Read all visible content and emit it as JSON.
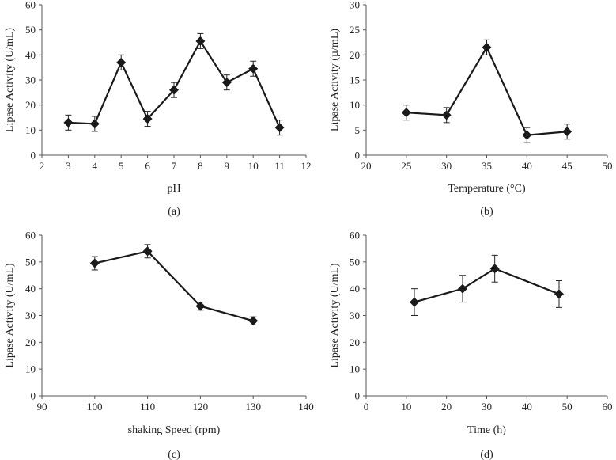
{
  "chart_data": [
    {
      "type": "line",
      "panel_label": "(a)",
      "xlabel": "pH",
      "ylabel": "Lipase Activity (U/mL)",
      "xlim": [
        2,
        12
      ],
      "ylim": [
        0,
        60
      ],
      "xticks": [
        "2",
        "3",
        "4",
        "5",
        "6",
        "7",
        "8",
        "9",
        "10",
        "11",
        "12"
      ],
      "yticks": [
        "0",
        "10",
        "20",
        "30",
        "40",
        "50",
        "60"
      ],
      "x": [
        3,
        4,
        5,
        6,
        7,
        8,
        9,
        10,
        11
      ],
      "values": [
        13,
        12.5,
        37,
        14.5,
        26,
        45.5,
        29,
        34.5,
        11
      ],
      "errors": [
        3,
        3,
        3,
        3,
        3,
        3,
        3,
        3,
        3
      ]
    },
    {
      "type": "line",
      "panel_label": "(b)",
      "xlabel": "Temperature (°C)",
      "ylabel": "Lipase Activity (µ/mL)",
      "xlim": [
        20,
        50
      ],
      "ylim": [
        0,
        30
      ],
      "xticks": [
        "20",
        "25",
        "30",
        "35",
        "40",
        "45",
        "50"
      ],
      "yticks": [
        "0",
        "5",
        "10",
        "15",
        "20",
        "25",
        "30"
      ],
      "x": [
        25,
        30,
        35,
        40,
        45
      ],
      "values": [
        8.5,
        8,
        21.5,
        4,
        4.7
      ],
      "errors": [
        1.5,
        1.5,
        1.5,
        1.5,
        1.5
      ]
    },
    {
      "type": "line",
      "panel_label": "(c)",
      "xlabel": "shaking Speed (rpm)",
      "ylabel": "Lipase Activity (U/mL)",
      "xlim": [
        90,
        140
      ],
      "ylim": [
        0,
        60
      ],
      "xticks": [
        "90",
        "100",
        "110",
        "120",
        "130",
        "140"
      ],
      "yticks": [
        "0",
        "10",
        "20",
        "30",
        "40",
        "50",
        "60"
      ],
      "x": [
        100,
        110,
        120,
        130
      ],
      "values": [
        49.5,
        54,
        33.5,
        28
      ],
      "errors": [
        2.5,
        2.5,
        1.5,
        1.5
      ]
    },
    {
      "type": "line",
      "panel_label": "(d)",
      "xlabel": "Time (h)",
      "ylabel": "Lipase Activity (U/mL)",
      "xlim": [
        0,
        60
      ],
      "ylim": [
        0,
        60
      ],
      "xticks": [
        "0",
        "10",
        "20",
        "30",
        "40",
        "50",
        "60"
      ],
      "yticks": [
        "0",
        "10",
        "20",
        "30",
        "40",
        "50",
        "60"
      ],
      "x": [
        12,
        24,
        32,
        48
      ],
      "values": [
        35,
        40,
        47.5,
        38
      ],
      "errors": [
        5,
        5,
        5,
        5
      ]
    }
  ]
}
